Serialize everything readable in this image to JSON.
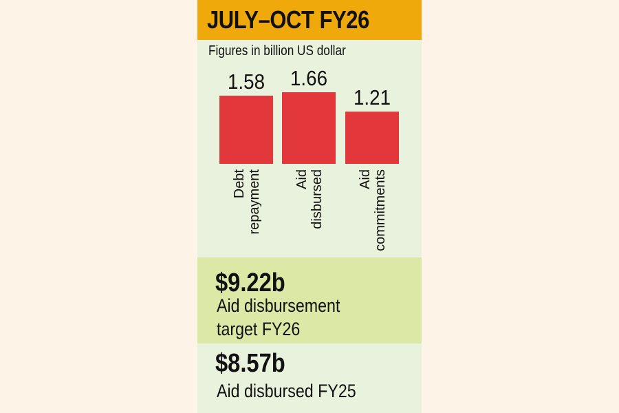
{
  "header": {
    "title": "JULY–OCT FY26"
  },
  "subtitle": "Figures in billion US dollar",
  "colors": {
    "bar": "#e3383b",
    "header": "#f0a90a",
    "panel": "#e9f2dc",
    "highlight": "#dbe8a6"
  },
  "chart_data": {
    "type": "bar",
    "categories": [
      [
        "Debt",
        "repayment"
      ],
      [
        "Aid",
        "disbursed"
      ],
      [
        "Aid",
        "commitments"
      ]
    ],
    "values": [
      1.58,
      1.66,
      1.21
    ],
    "value_labels": [
      "1.58",
      "1.66",
      "1.21"
    ],
    "title": "JULY–OCT FY26",
    "subtitle": "Figures in billion US dollar",
    "ylim": [
      0,
      1.66
    ],
    "grid": false
  },
  "stats": [
    {
      "value": "$9.22b",
      "lines": [
        "Aid disbursement",
        "target FY26"
      ]
    },
    {
      "value": "$8.57b",
      "lines": [
        "Aid disbursed FY25"
      ]
    }
  ]
}
